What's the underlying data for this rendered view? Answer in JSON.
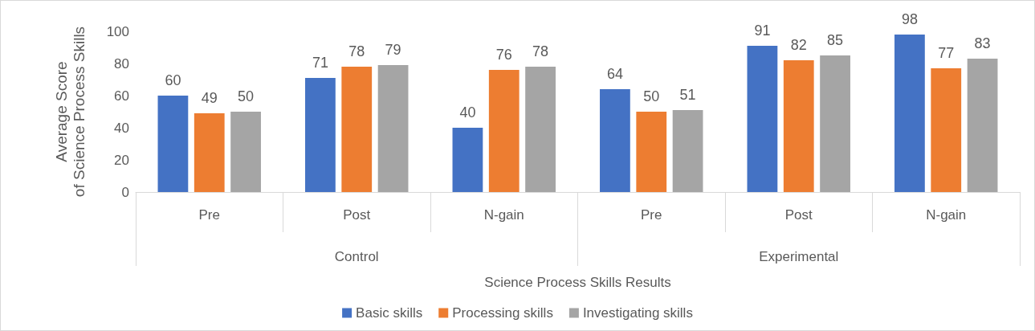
{
  "chart_data": {
    "type": "bar",
    "xlabel": "Science Process Skills Results",
    "ylabel": "Average Score\nof Science Process Skills",
    "categories": [
      "Pre",
      "Post",
      "N-gain",
      "Pre",
      "Post",
      "N-gain"
    ],
    "annotations": [
      "Control",
      "Experimental"
    ],
    "series": [
      {
        "name": "Basic skills",
        "color": "#4472c4",
        "values": [
          60,
          71,
          40,
          64,
          91,
          98
        ]
      },
      {
        "name": "Processing skills",
        "color": "#ed7d31",
        "values": [
          49,
          78,
          76,
          50,
          82,
          77
        ]
      },
      {
        "name": "Investigating skills",
        "color": "#a5a5a5",
        "values": [
          50,
          79,
          78,
          51,
          85,
          83
        ]
      }
    ],
    "ylim": [
      0,
      100
    ],
    "yticks": [
      0,
      20,
      40,
      60,
      80,
      100
    ],
    "grid": false,
    "legend": "bottom",
    "data_labels": true
  }
}
